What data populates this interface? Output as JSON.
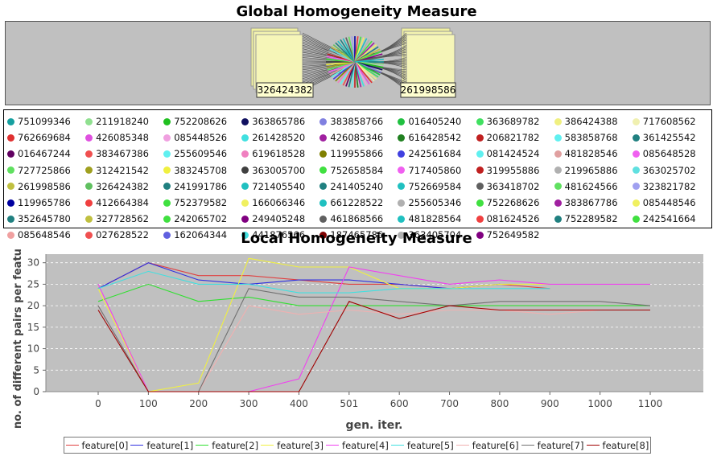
{
  "global": {
    "title": "Global Homogeneity Measure",
    "left_label": "326424382",
    "right_label": "261998586"
  },
  "legend_ids": [
    {
      "id": "751099346",
      "color": "#16a0a0"
    },
    {
      "id": "211918240",
      "color": "#90e090"
    },
    {
      "id": "752208626",
      "color": "#20c020"
    },
    {
      "id": "363865786",
      "color": "#101060"
    },
    {
      "id": "383858766",
      "color": "#8080e0"
    },
    {
      "id": "016405240",
      "color": "#20c040"
    },
    {
      "id": "363689782",
      "color": "#40e060"
    },
    {
      "id": "386424388",
      "color": "#f0f080"
    },
    {
      "id": "717608562",
      "color": "#f0f0b0"
    },
    {
      "id": "762669684",
      "color": "#e03030"
    },
    {
      "id": "426085348",
      "color": "#e050e0"
    },
    {
      "id": "085448526",
      "color": "#f0a0e0"
    },
    {
      "id": "261428520",
      "color": "#40e0e0"
    },
    {
      "id": "426085346",
      "color": "#a020a0"
    },
    {
      "id": "616428542",
      "color": "#208020"
    },
    {
      "id": "206821782",
      "color": "#c02020"
    },
    {
      "id": "583858768",
      "color": "#60f0f0"
    },
    {
      "id": "361425542",
      "color": "#208080"
    },
    {
      "id": "016467244",
      "color": "#600060"
    },
    {
      "id": "383467386",
      "color": "#f05050"
    },
    {
      "id": "255609546",
      "color": "#60f0f0"
    },
    {
      "id": "619618528",
      "color": "#f080c0"
    },
    {
      "id": "119955866",
      "color": "#808000"
    },
    {
      "id": "242561684",
      "color": "#4040e0"
    },
    {
      "id": "081424524",
      "color": "#60f0f0"
    },
    {
      "id": "481828546",
      "color": "#e0a0a0"
    },
    {
      "id": "085648528",
      "color": "#f060f0"
    },
    {
      "id": "727725866",
      "color": "#60e060"
    },
    {
      "id": "312421542",
      "color": "#a0a020"
    },
    {
      "id": "383245708",
      "color": "#f0f040"
    },
    {
      "id": "363005700",
      "color": "#404040"
    },
    {
      "id": "752658584",
      "color": "#40e040"
    },
    {
      "id": "717405860",
      "color": "#f060f0"
    },
    {
      "id": "319955886",
      "color": "#c02020"
    },
    {
      "id": "219965886",
      "color": "#b0b0b0"
    },
    {
      "id": "363025702",
      "color": "#60e0e0"
    },
    {
      "id": "261998586",
      "color": "#c0c040"
    },
    {
      "id": "326424382",
      "color": "#60c060"
    },
    {
      "id": "241991786",
      "color": "#208080"
    },
    {
      "id": "721405540",
      "color": "#20c0c0"
    },
    {
      "id": "241405240",
      "color": "#208080"
    },
    {
      "id": "752669584",
      "color": "#20c0c0"
    },
    {
      "id": "363418702",
      "color": "#606060"
    },
    {
      "id": "481624566",
      "color": "#60e060"
    },
    {
      "id": "323821782",
      "color": "#a0a0f0"
    },
    {
      "id": "119965786",
      "color": "#0000a0"
    },
    {
      "id": "412664384",
      "color": "#f04040"
    },
    {
      "id": "752379582",
      "color": "#40e040"
    },
    {
      "id": "166066346",
      "color": "#f0f060"
    },
    {
      "id": "661228522",
      "color": "#20c0c0"
    },
    {
      "id": "255605346",
      "color": "#b0b0b0"
    },
    {
      "id": "752268626",
      "color": "#40e040"
    },
    {
      "id": "383867786",
      "color": "#a020a0"
    },
    {
      "id": "085448546",
      "color": "#f0f060"
    },
    {
      "id": "352645780",
      "color": "#208080"
    },
    {
      "id": "327728562",
      "color": "#c0c040"
    },
    {
      "id": "242065702",
      "color": "#40e040"
    },
    {
      "id": "249405248",
      "color": "#800080"
    },
    {
      "id": "461868566",
      "color": "#606060"
    },
    {
      "id": "481828564",
      "color": "#20c0c0"
    },
    {
      "id": "081624526",
      "color": "#f04040"
    },
    {
      "id": "752289582",
      "color": "#208080"
    },
    {
      "id": "242541664",
      "color": "#40e040"
    },
    {
      "id": "085648546",
      "color": "#f0a0a0"
    },
    {
      "id": "027628522",
      "color": "#f05050"
    },
    {
      "id": "162064344",
      "color": "#6060e0"
    },
    {
      "id": "441876566",
      "color": "#40e0e0"
    },
    {
      "id": "187465786",
      "color": "#800000"
    },
    {
      "id": "363405704",
      "color": "#b0b0b0"
    },
    {
      "id": "752649582",
      "color": "#800080"
    }
  ],
  "chart_data": {
    "type": "line",
    "title": "Local Homogeneity Measure",
    "xlabel": "gen. iter.",
    "ylabel": "no. of different pairs per feature",
    "categories": [
      "0",
      "100",
      "200",
      "300",
      "400",
      "501",
      "600",
      "700",
      "800",
      "900",
      "1000",
      "1100"
    ],
    "ylim": [
      0,
      32
    ],
    "yticks": [
      0,
      5,
      10,
      15,
      20,
      25,
      30
    ],
    "grid": true,
    "legend_position": "bottom",
    "series": [
      {
        "name": "feature[0]",
        "color": "#e04040",
        "values": [
          24,
          30,
          27,
          27,
          26,
          25,
          25,
          24,
          25,
          24,
          null,
          null
        ]
      },
      {
        "name": "feature[1]",
        "color": "#3030e0",
        "values": [
          24,
          30,
          26,
          25,
          26,
          26,
          25,
          24,
          25,
          null,
          null,
          null
        ]
      },
      {
        "name": "feature[2]",
        "color": "#30e030",
        "values": [
          21,
          25,
          21,
          22,
          20,
          20,
          20,
          20,
          20,
          20,
          20,
          20
        ]
      },
      {
        "name": "feature[3]",
        "color": "#f0f040",
        "values": [
          24,
          0,
          2,
          31,
          29,
          29,
          24,
          24,
          25,
          25,
          null,
          null
        ]
      },
      {
        "name": "feature[4]",
        "color": "#f040f0",
        "values": [
          25,
          0,
          0,
          0,
          3,
          29,
          27,
          25,
          26,
          25,
          25,
          25
        ]
      },
      {
        "name": "feature[5]",
        "color": "#40e0e0",
        "values": [
          24,
          28,
          25,
          25,
          23,
          23,
          24,
          24,
          24,
          24,
          null,
          null
        ]
      },
      {
        "name": "feature[6]",
        "color": "#f0b0b0",
        "values": [
          20,
          0,
          0,
          20,
          18,
          19,
          18,
          19,
          19,
          18,
          19,
          19
        ]
      },
      {
        "name": "feature[7]",
        "color": "#707070",
        "values": [
          20,
          0,
          0,
          24,
          22,
          22,
          21,
          20,
          21,
          21,
          21,
          20
        ]
      },
      {
        "name": "feature[8]",
        "color": "#a00000",
        "values": [
          19,
          0,
          0,
          0,
          0,
          21,
          17,
          20,
          19,
          19,
          19,
          19
        ]
      }
    ]
  }
}
